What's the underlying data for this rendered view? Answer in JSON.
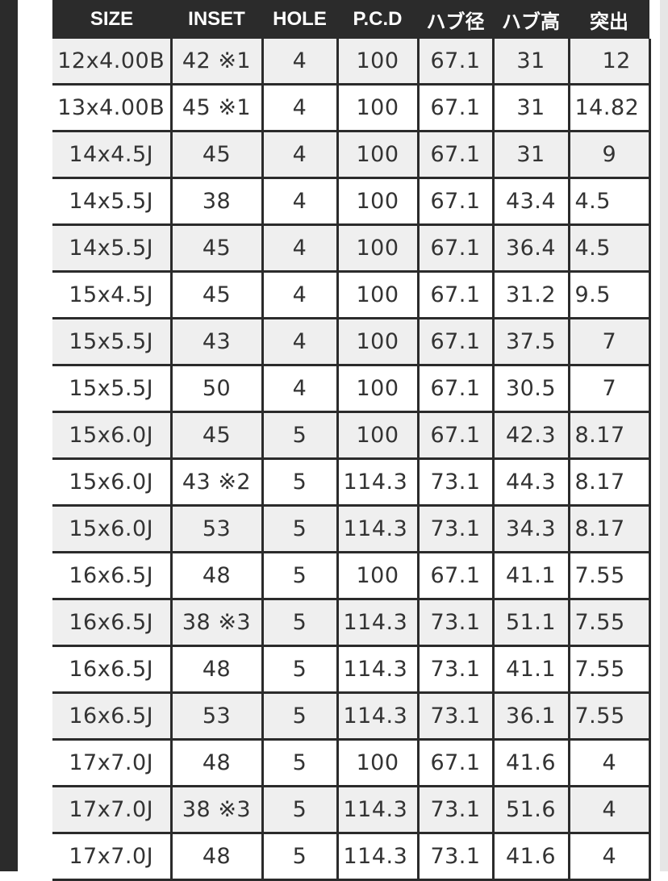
{
  "table": {
    "headers": [
      "SIZE",
      "INSET",
      "HOLE",
      "P.C.D",
      "ハブ径",
      "ハブ高",
      "突出"
    ],
    "rows": [
      [
        "12x4.00B",
        "42 ※1",
        "4",
        "100",
        "67.1",
        "31",
        "12"
      ],
      [
        "13x4.00B",
        "45 ※1",
        "4",
        "100",
        "67.1",
        "31",
        "14.82"
      ],
      [
        "14x4.5J",
        "45",
        "4",
        "100",
        "67.1",
        "31",
        "9"
      ],
      [
        "14x5.5J",
        "38",
        "4",
        "100",
        "67.1",
        "43.4",
        "4.5"
      ],
      [
        "14x5.5J",
        "45",
        "4",
        "100",
        "67.1",
        "36.4",
        "4.5"
      ],
      [
        "15x4.5J",
        "45",
        "4",
        "100",
        "67.1",
        "31.2",
        "9.5"
      ],
      [
        "15x5.5J",
        "43",
        "4",
        "100",
        "67.1",
        "37.5",
        "7"
      ],
      [
        "15x5.5J",
        "50",
        "4",
        "100",
        "67.1",
        "30.5",
        "7"
      ],
      [
        "15x6.0J",
        "45",
        "5",
        "100",
        "67.1",
        "42.3",
        "8.17"
      ],
      [
        "15x6.0J",
        "43 ※2",
        "5",
        "114.3",
        "73.1",
        "44.3",
        "8.17"
      ],
      [
        "15x6.0J",
        "53",
        "5",
        "114.3",
        "73.1",
        "34.3",
        "8.17"
      ],
      [
        "16x6.5J",
        "48",
        "5",
        "100",
        "67.1",
        "41.1",
        "7.55"
      ],
      [
        "16x6.5J",
        "38 ※3",
        "5",
        "114.3",
        "73.1",
        "51.1",
        "7.55"
      ],
      [
        "16x6.5J",
        "48",
        "5",
        "114.3",
        "73.1",
        "41.1",
        "7.55"
      ],
      [
        "16x6.5J",
        "53",
        "5",
        "114.3",
        "73.1",
        "36.1",
        "7.55"
      ],
      [
        "17x7.0J",
        "48",
        "5",
        "100",
        "67.1",
        "41.6",
        "4"
      ],
      [
        "17x7.0J",
        "38 ※3",
        "5",
        "114.3",
        "73.1",
        "51.6",
        "4"
      ],
      [
        "17x7.0J",
        "48",
        "5",
        "114.3",
        "73.1",
        "41.6",
        "4"
      ]
    ]
  }
}
